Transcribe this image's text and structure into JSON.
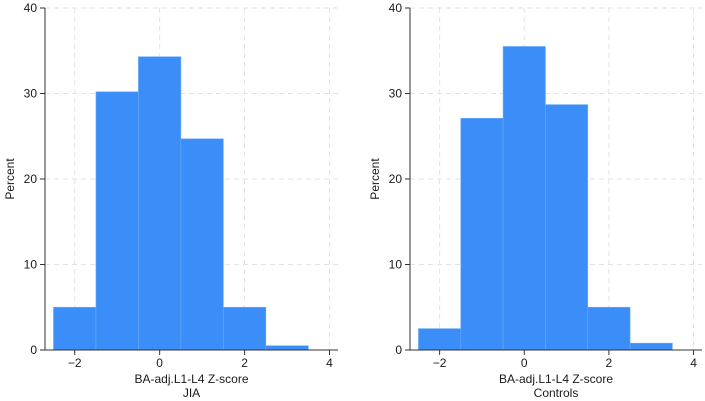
{
  "chart_data": [
    {
      "type": "bar",
      "subtitle": "JIA",
      "xlabel": "BA-adj.L1-L4 Z-score",
      "ylabel": "Percent",
      "xlim": [
        -2.7,
        4.2
      ],
      "ylim": [
        0,
        40
      ],
      "xticks": [
        -2,
        0,
        2,
        4
      ],
      "yticks": [
        0,
        10,
        20,
        30,
        40
      ],
      "grid": true,
      "bar_color": "#3b8ef8",
      "bins": [
        {
          "x0": -2.5,
          "x1": -1.5,
          "value": 5.0
        },
        {
          "x0": -1.5,
          "x1": -0.5,
          "value": 30.2
        },
        {
          "x0": -0.5,
          "x1": 0.5,
          "value": 34.3
        },
        {
          "x0": 0.5,
          "x1": 1.5,
          "value": 24.7
        },
        {
          "x0": 1.5,
          "x1": 2.5,
          "value": 5.0
        },
        {
          "x0": 2.5,
          "x1": 3.5,
          "value": 0.5
        }
      ]
    },
    {
      "type": "bar",
      "subtitle": "Controls",
      "xlabel": "BA-adj.L1-L4 Z-score",
      "ylabel": "Percent",
      "xlim": [
        -2.7,
        4.2
      ],
      "ylim": [
        0,
        40
      ],
      "xticks": [
        -2,
        0,
        2,
        4
      ],
      "yticks": [
        0,
        10,
        20,
        30,
        40
      ],
      "grid": true,
      "bar_color": "#3b8ef8",
      "bins": [
        {
          "x0": -2.5,
          "x1": -1.5,
          "value": 2.5
        },
        {
          "x0": -1.5,
          "x1": -0.5,
          "value": 27.1
        },
        {
          "x0": -0.5,
          "x1": 0.5,
          "value": 35.5
        },
        {
          "x0": 0.5,
          "x1": 1.5,
          "value": 28.7
        },
        {
          "x0": 1.5,
          "x1": 2.5,
          "value": 5.0
        },
        {
          "x0": 2.5,
          "x1": 3.5,
          "value": 0.8
        }
      ]
    }
  ]
}
